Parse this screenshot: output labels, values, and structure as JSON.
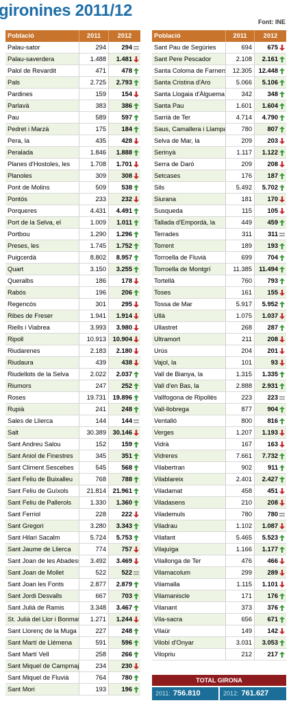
{
  "title": "gironines 2011/12",
  "source": "Font: INE",
  "left": {
    "header": [
      "Població",
      "2011",
      "2012"
    ],
    "rows": [
      [
        "Palau-sator",
        "294",
        "294"
      ],
      [
        "Palau-saverdera",
        "1.488",
        "1.481"
      ],
      [
        "Palol de Revardit",
        "471",
        "478"
      ],
      [
        "Pals",
        "2.725",
        "2.793"
      ],
      [
        "Pardines",
        "159",
        "154"
      ],
      [
        "Parlavà",
        "383",
        "386"
      ],
      [
        "Pau",
        "589",
        "597"
      ],
      [
        "Pedret i Marzà",
        "175",
        "184"
      ],
      [
        "Pera, la",
        "435",
        "428"
      ],
      [
        "Peralada",
        "1.846",
        "1.888"
      ],
      [
        "Planes d'Hostoles, les",
        "1.708",
        "1.701"
      ],
      [
        "Planoles",
        "309",
        "308"
      ],
      [
        "Pont de Molins",
        "509",
        "538"
      ],
      [
        "Pontós",
        "233",
        "232"
      ],
      [
        "Porqueres",
        "4.431",
        "4.491"
      ],
      [
        "Port de la Selva, el",
        "1.009",
        "1.011"
      ],
      [
        "Portbou",
        "1.290",
        "1.296"
      ],
      [
        "Preses, les",
        "1.745",
        "1.752"
      ],
      [
        "Puigcerdà",
        "8.802",
        "8.957"
      ],
      [
        "Quart",
        "3.150",
        "3.255"
      ],
      [
        "Queralbs",
        "186",
        "178"
      ],
      [
        "Rabós",
        "196",
        "206"
      ],
      [
        "Regencós",
        "301",
        "295"
      ],
      [
        "Ribes de Freser",
        "1.941",
        "1.914"
      ],
      [
        "Riells i Viabrea",
        "3.993",
        "3.980"
      ],
      [
        "Ripoll",
        "10.913",
        "10.904"
      ],
      [
        "Riudarenes",
        "2.183",
        "2.180"
      ],
      [
        "Riudaura",
        "439",
        "438"
      ],
      [
        "Riudellots de la Selva",
        "2.022",
        "2.037"
      ],
      [
        "Riumors",
        "247",
        "252"
      ],
      [
        "Roses",
        "19.731",
        "19.896"
      ],
      [
        "Rupià",
        "241",
        "248"
      ],
      [
        "Sales de Llierca",
        "144",
        "144"
      ],
      [
        "Salt",
        "30.389",
        "30.146"
      ],
      [
        "Sant Andreu Salou",
        "152",
        "159"
      ],
      [
        "Sant Aniol de Finestres",
        "345",
        "351"
      ],
      [
        "Sant Climent Sescebes",
        "545",
        "568"
      ],
      [
        "Sant Feliu de Buixalleu",
        "768",
        "788"
      ],
      [
        "Sant Feliu de Guíxols",
        "21.814",
        "21.961"
      ],
      [
        "Sant Feliu de Pallerols",
        "1.330",
        "1.360"
      ],
      [
        "Sant Ferriol",
        "228",
        "222"
      ],
      [
        "Sant Gregori",
        "3.280",
        "3.343"
      ],
      [
        "Sant Hilari Sacalm",
        "5.724",
        "5.753"
      ],
      [
        "Sant Jaume de Llierca",
        "774",
        "757"
      ],
      [
        "Sant Joan de les Abadesses",
        "3.492",
        "3.469"
      ],
      [
        "Sant Joan de Mollet",
        "522",
        "522"
      ],
      [
        "Sant Joan les Fonts",
        "2.877",
        "2.879"
      ],
      [
        "Sant Jordi Desvalls",
        "667",
        "703"
      ],
      [
        "Sant Julià de Ramis",
        "3.348",
        "3.467"
      ],
      [
        "St. Julià del Llor i Bonmatí",
        "1.271",
        "1.244"
      ],
      [
        "Sant Llorenç de la Muga",
        "227",
        "248"
      ],
      [
        "Sant Martí de Llémena",
        "591",
        "596"
      ],
      [
        "Sant Martí Vell",
        "258",
        "266"
      ],
      [
        "Sant Miquel de Campmajor",
        "234",
        "230"
      ],
      [
        "Sant Miquel de Fluvià",
        "764",
        "780"
      ],
      [
        "Sant Mori",
        "193",
        "196"
      ]
    ]
  },
  "right": {
    "header": [
      "Població",
      "2011",
      "2012"
    ],
    "rows": [
      [
        "Sant Pau de Segúries",
        "694",
        "675"
      ],
      [
        "Sant Pere Pescador",
        "2.108",
        "2.161"
      ],
      [
        "Santa Coloma de Farners",
        "12.305",
        "12.448"
      ],
      [
        "Santa Cristina d'Aro",
        "5.066",
        "5.106"
      ],
      [
        "Santa Llogaia d'Àlguema",
        "342",
        "348"
      ],
      [
        "Santa Pau",
        "1.601",
        "1.604"
      ],
      [
        "Sarrià de Ter",
        "4.714",
        "4.790"
      ],
      [
        "Saus, Camallera i Llampaies",
        "780",
        "807"
      ],
      [
        "Selva de Mar, la",
        "209",
        "203"
      ],
      [
        "Serinyà",
        "1.117",
        "1.122"
      ],
      [
        "Serra de Daró",
        "209",
        "208"
      ],
      [
        "Setcases",
        "176",
        "187"
      ],
      [
        "Sils",
        "5.492",
        "5.702"
      ],
      [
        "Siurana",
        "181",
        "170"
      ],
      [
        "Susqueda",
        "115",
        "105"
      ],
      [
        "Tallada d'Empordà, la",
        "449",
        "459"
      ],
      [
        "Terrades",
        "311",
        "311"
      ],
      [
        "Torrent",
        "189",
        "193"
      ],
      [
        "Torroella de Fluvià",
        "699",
        "704"
      ],
      [
        "Torroella de Montgrí",
        "11.385",
        "11.494"
      ],
      [
        "Tortellà",
        "760",
        "793"
      ],
      [
        "Toses",
        "161",
        "155"
      ],
      [
        "Tossa de Mar",
        "5.917",
        "5.952"
      ],
      [
        "Ullà",
        "1.075",
        "1.037"
      ],
      [
        "Ullastret",
        "268",
        "287"
      ],
      [
        "Ultramort",
        "211",
        "208"
      ],
      [
        "Urús",
        "204",
        "201"
      ],
      [
        "Vajol, la",
        "101",
        "93"
      ],
      [
        "Vall de Bianya, la",
        "1.315",
        "1.335"
      ],
      [
        "Vall d'en Bas, la",
        "2.888",
        "2.931"
      ],
      [
        "Vallfogona de Ripollès",
        "223",
        "223"
      ],
      [
        "Vall-llobrega",
        "877",
        "904"
      ],
      [
        "Ventalló",
        "800",
        "816"
      ],
      [
        "Verges",
        "1.207",
        "1.193"
      ],
      [
        "Vidrà",
        "167",
        "163"
      ],
      [
        "Vidreres",
        "7.661",
        "7.732"
      ],
      [
        "Vilabertran",
        "902",
        "911"
      ],
      [
        "Vilablareix",
        "2.401",
        "2.427"
      ],
      [
        "Viladamat",
        "458",
        "451"
      ],
      [
        "Viladasens",
        "210",
        "208"
      ],
      [
        "Vilademuls",
        "780",
        "780"
      ],
      [
        "Viladrau",
        "1.102",
        "1.087"
      ],
      [
        "Vilafant",
        "5.465",
        "5.523"
      ],
      [
        "Vilajuïga",
        "1.166",
        "1.177"
      ],
      [
        "Vilallonga de Ter",
        "476",
        "466"
      ],
      [
        "Vilamacolum",
        "299",
        "289"
      ],
      [
        "Vilamalla",
        "1.115",
        "1.101"
      ],
      [
        "Vilamaniscle",
        "171",
        "176"
      ],
      [
        "Vilanant",
        "373",
        "376"
      ],
      [
        "Vila-sacra",
        "656",
        "671"
      ],
      [
        "Vilaür",
        "149",
        "142"
      ],
      [
        "Vilobí d'Onyar",
        "3.031",
        "3.053"
      ],
      [
        "Vilopriu",
        "212",
        "217"
      ]
    ]
  },
  "total": {
    "title": "TOTAL GIRONA",
    "items": [
      {
        "label": "2011:",
        "value": "756.810"
      },
      {
        "label": "2012:",
        "value": "761.627"
      }
    ]
  }
}
